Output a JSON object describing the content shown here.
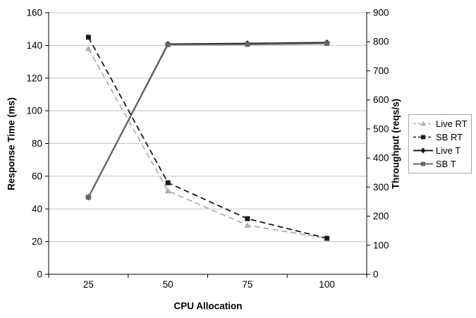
{
  "chart_data": {
    "type": "line",
    "title": "",
    "xlabel": "CPU Allocation",
    "x_categories": [
      "25",
      "50",
      "75",
      "100"
    ],
    "axes": {
      "left": {
        "label": "Response Time (ms)",
        "min": 0,
        "max": 160,
        "step": 20,
        "tick_labels": [
          "0",
          "20",
          "40",
          "60",
          "80",
          "100",
          "120",
          "140",
          "160"
        ]
      },
      "right": {
        "label": "Throughput (reqs/s)",
        "min": 0,
        "max": 900,
        "step": 100,
        "tick_labels": [
          "0",
          "100",
          "200",
          "300",
          "400",
          "500",
          "600",
          "700",
          "800",
          "900"
        ]
      }
    },
    "grid": {
      "horizontal": true,
      "aligned_to": "left-axis ticks every 20"
    },
    "legend": {
      "position": "right",
      "entries": [
        "Live RT",
        "SB RT",
        "Live T",
        "SB T"
      ]
    },
    "series": [
      {
        "name": "Live RT",
        "axis": "left",
        "line": "dashed",
        "marker": "triangle",
        "color": "#b0b0b0",
        "values": [
          138,
          51,
          30,
          22
        ]
      },
      {
        "name": "SB RT",
        "axis": "left",
        "line": "dashed",
        "marker": "square",
        "color": "#1a1a1a",
        "values": [
          145,
          56,
          34,
          22
        ]
      },
      {
        "name": "Live T",
        "axis": "right",
        "line": "solid",
        "marker": "diamond",
        "color": "#1a1a1a",
        "values": [
          265,
          792,
          794,
          797
        ]
      },
      {
        "name": "SB T",
        "axis": "right",
        "line": "solid",
        "marker": "square",
        "color": "#666666",
        "values": [
          265,
          790,
          791,
          794
        ]
      }
    ],
    "colors": {
      "background": "#ffffff",
      "gridline": "#c2c2c2",
      "axis": "#000000",
      "legend_border": "#a6a6a6"
    }
  }
}
